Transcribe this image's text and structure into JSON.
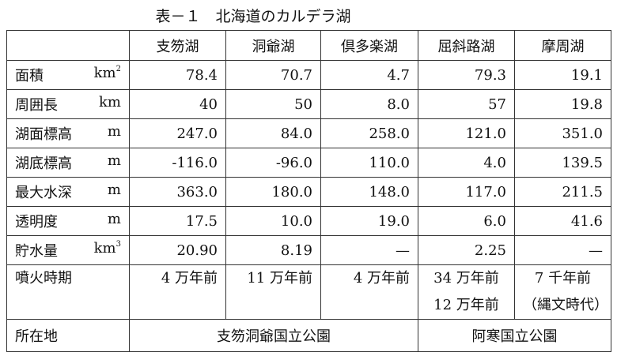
{
  "title": "表－１　北海道のカルデラ湖",
  "table": {
    "header": [
      "支笏湖",
      "洞爺湖",
      "倶多楽湖",
      "屈斜路湖",
      "摩周湖"
    ],
    "rows": [
      {
        "label": "面積",
        "unit": "km",
        "unit_sup": "2",
        "values": [
          "78.4",
          "70.7",
          "4.7",
          "79.3",
          "19.1"
        ]
      },
      {
        "label": "周囲長",
        "unit": "km",
        "values": [
          "40",
          "50",
          "8.0",
          "57",
          "19.8"
        ]
      },
      {
        "label": "湖面標高",
        "unit": "m",
        "values": [
          "247.0",
          "84.0",
          "258.0",
          "121.0",
          "351.0"
        ]
      },
      {
        "label": "湖底標高",
        "unit": "m",
        "values": [
          "-116.0",
          "-96.0",
          "110.0",
          "4.0",
          "139.5"
        ]
      },
      {
        "label": "最大水深",
        "unit": "m",
        "values": [
          "363.0",
          "180.0",
          "148.0",
          "117.0",
          "211.5"
        ]
      },
      {
        "label": "透明度",
        "unit": "m",
        "values": [
          "17.5",
          "10.0",
          "19.0",
          "6.0",
          "41.6"
        ]
      },
      {
        "label": "貯水量",
        "unit": "km",
        "unit_sup": "3",
        "values": [
          "20.90",
          "8.19",
          "—",
          "2.25",
          "—"
        ]
      }
    ],
    "eruption": {
      "label": "噴火時期",
      "values": [
        [
          "4 万年前"
        ],
        [
          "11 万年前"
        ],
        [
          "4 万年前"
        ],
        [
          "34 万年前",
          "12 万年前"
        ],
        [
          "7 千年前",
          "（縄文時代）"
        ]
      ]
    },
    "location": {
      "label": "所在地",
      "values": [
        "支笏洞爺国立公園",
        "阿寒国立公園"
      ]
    }
  }
}
